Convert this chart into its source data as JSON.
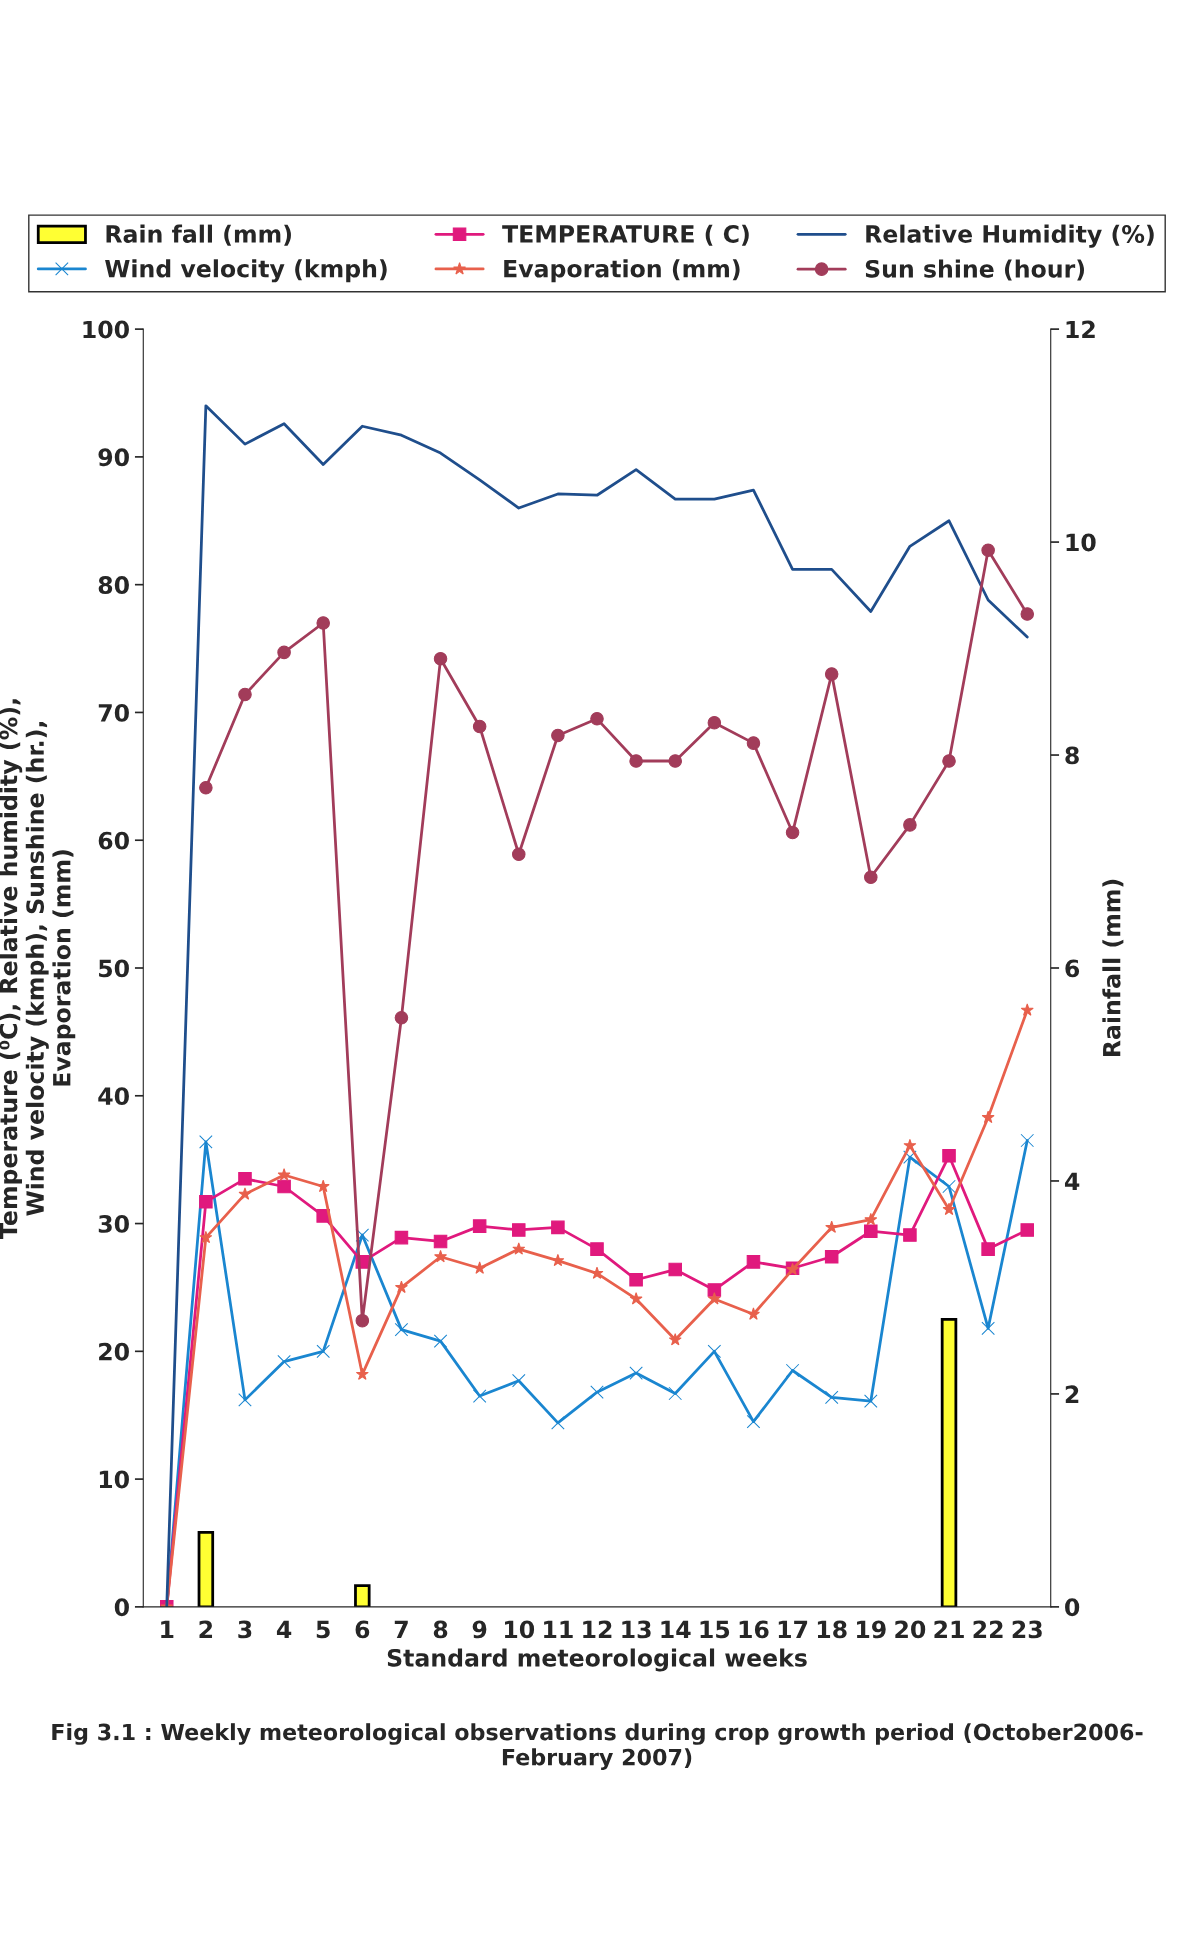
{
  "chart_data": {
    "type": "line",
    "title": null,
    "xlabel": "Standard meteorological weeks",
    "ylabel": "Temperature (⁰C), Relative humidity (%),\nWind velocity (kmph), Sunshine (hr.),\nEvaporation (mm)",
    "y2label": "Rainfall (mm)",
    "annotations": [
      "Fig 3.1 : Weekly meteorological observations during crop growth period (October2006- February 2007)"
    ],
    "categories": [
      "1",
      "2",
      "3",
      "4",
      "5",
      "6",
      "7",
      "8",
      "9",
      "10",
      "11",
      "12",
      "13",
      "14",
      "15",
      "16",
      "17",
      "18",
      "19",
      "20",
      "21",
      "22",
      "23"
    ],
    "series": [
      {
        "name": "Rain fall (mm)",
        "type": "bar",
        "axis": "y2",
        "color": "#ffff33",
        "values": [
          null,
          0.7,
          null,
          null,
          null,
          0.2,
          null,
          null,
          null,
          null,
          null,
          null,
          null,
          null,
          null,
          null,
          null,
          null,
          null,
          null,
          2.7,
          null,
          null
        ]
      },
      {
        "name": "Wind velocity (kmph)",
        "color": "#1a86d0",
        "marker": "cross",
        "values": [
          0,
          36.4,
          16.2,
          19.2,
          20,
          29.1,
          21.7,
          20.8,
          16.5,
          17.7,
          14.4,
          16.8,
          18.3,
          16.7,
          20,
          14.5,
          18.5,
          16.4,
          16.1,
          35.2,
          32.9,
          21.8,
          36.5
        ]
      },
      {
        "name": "TEMPERATURE ( C)",
        "color": "#e0197d",
        "marker": "square",
        "values": [
          0,
          31.7,
          33.5,
          32.9,
          30.6,
          27,
          28.9,
          28.6,
          29.8,
          29.5,
          29.7,
          28,
          25.6,
          26.4,
          24.8,
          27,
          26.5,
          27.4,
          29.4,
          29.1,
          35.3,
          28,
          29.5
        ]
      },
      {
        "name": "Evaporation (mm)",
        "color": "#e8604c",
        "marker": "star",
        "values": [
          0,
          28.9,
          32.3,
          33.8,
          32.9,
          18.2,
          25,
          27.4,
          26.5,
          28,
          27.1,
          26.1,
          24.1,
          20.9,
          24.1,
          22.9,
          26.4,
          29.7,
          30.3,
          36.1,
          31.1,
          38.3,
          46.7
        ]
      },
      {
        "name": "Relative Humidity (%)",
        "color": "#1f4e8c",
        "marker": "none",
        "values": [
          0,
          94,
          91,
          92.6,
          89.4,
          92.4,
          91.7,
          90.3,
          88.2,
          86,
          87.1,
          87,
          89,
          86.7,
          86.7,
          87.4,
          81.2,
          81.2,
          77.9,
          83,
          85,
          78.8,
          75.9
        ]
      },
      {
        "name": "Sun shine (hour)",
        "color": "#a23c5a",
        "marker": "circle",
        "values": [
          null,
          64.1,
          71.4,
          74.7,
          77,
          22.4,
          46.1,
          74.2,
          68.9,
          58.9,
          68.2,
          69.5,
          66.2,
          66.2,
          69.2,
          67.6,
          60.6,
          73,
          57.1,
          61.2,
          66.2,
          82.7,
          77.7
        ]
      }
    ],
    "ylim": [
      0,
      100
    ],
    "yticks": [
      0,
      10,
      20,
      30,
      40,
      50,
      60,
      70,
      80,
      90,
      100
    ],
    "y2lim": [
      0,
      12
    ],
    "y2ticks": [
      0,
      2,
      4,
      6,
      8,
      10,
      12
    ],
    "grid": false,
    "legend": "top",
    "line_style": "solid"
  }
}
